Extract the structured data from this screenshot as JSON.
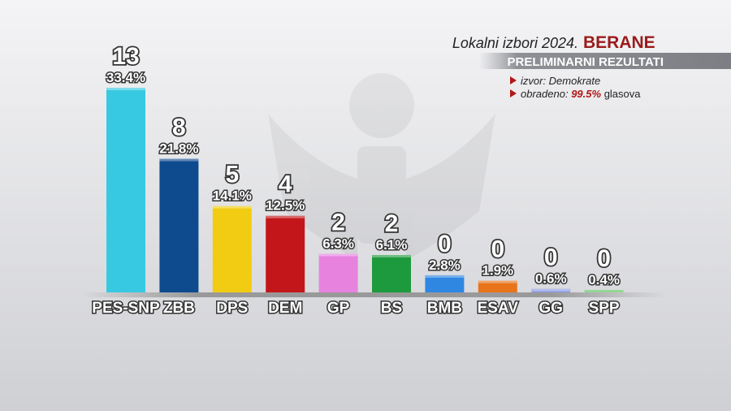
{
  "chart_data": {
    "type": "bar",
    "title": "Lokalni izbori 2024.",
    "location": "BERANE",
    "subtitle": "PRELIMINARNI REZULTATI",
    "source": "izvor: Demokrate",
    "processed_label": "obradeno:",
    "processed_value": 99.5,
    "processed_value_label": "99.5%",
    "processed_unit": "glasova",
    "categories": [
      "PES-SNP",
      "ZBB",
      "DPS",
      "DEM",
      "GP",
      "BS",
      "BMB",
      "ESAV",
      "GG",
      "SPP"
    ],
    "values": [
      33.4,
      21.8,
      14.1,
      12.5,
      6.3,
      6.1,
      2.8,
      1.9,
      0.6,
      0.4
    ],
    "value_labels": [
      "33.4%",
      "21.8%",
      "14.1%",
      "12.5%",
      "6.3%",
      "6.1%",
      "2.8%",
      "1.9%",
      "0.6%",
      "0.4%"
    ],
    "seats": [
      13,
      8,
      5,
      4,
      2,
      2,
      0,
      0,
      0,
      0
    ],
    "colors": [
      "#38c9e2",
      "#0e4a8e",
      "#f1cc12",
      "#c3161b",
      "#e782df",
      "#1d9a3d",
      "#2f87e2",
      "#e8741b",
      "#8d9be2",
      "#5cc15c"
    ]
  }
}
